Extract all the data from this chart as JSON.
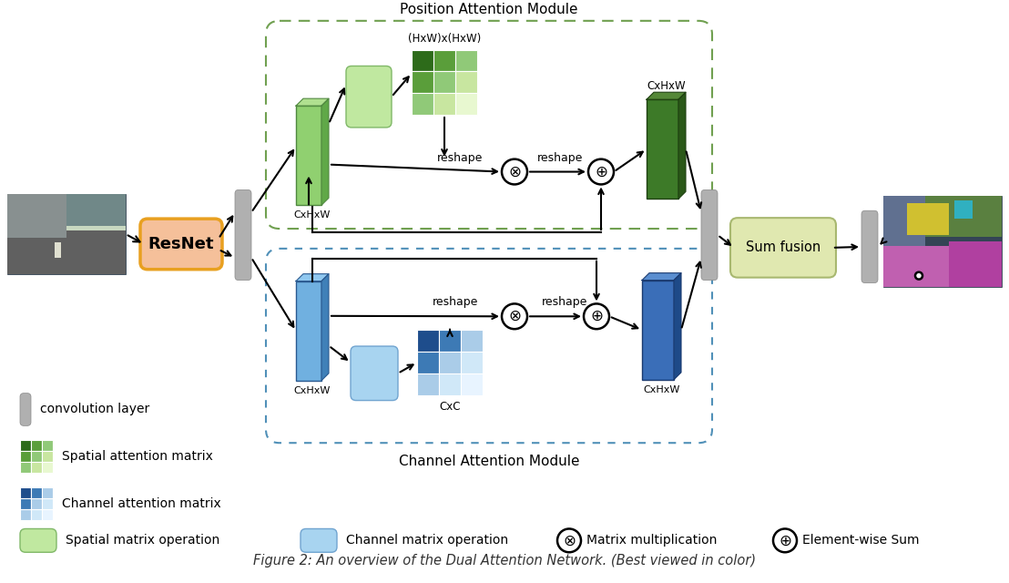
{
  "title": "Position Attention Module",
  "title2": "Channel Attention Module",
  "fig_caption": "Figure 2: An overview of the Dual Attention Network. (Best viewed in color)",
  "colors": {
    "green_light_box": "#a8d890",
    "green_tall": "#88c870",
    "green_tall_edge": "#508840",
    "green_dark": "#3a6e20",
    "green_dark_edge": "#2a5015",
    "green_matrix_colors": [
      "#2d6b1a",
      "#5a9e3a",
      "#90c978",
      "#5a9e3a",
      "#90c978",
      "#c8e6a0",
      "#90c978",
      "#c8e6a0",
      "#e8f8d0"
    ],
    "blue_tall": "#5a9ad0",
    "blue_tall_edge": "#2a5a90",
    "blue_dark": "#3060a0",
    "blue_dark_edge": "#1a3a70",
    "blue_light_box": "#90c0e8",
    "blue_matrix_colors": [
      "#1e4d8c",
      "#3d7ab5",
      "#aacce8",
      "#3d7ab5",
      "#aacce8",
      "#d0e8f8",
      "#aacce8",
      "#d0e8f8",
      "#e8f4ff"
    ],
    "gray_bar": "#b0b0b0",
    "gray_bar_edge": "#888888",
    "resnet_fill": "#f5c09a",
    "resnet_edge": "#e8a020",
    "sum_fusion_fill": "#e0e8b0",
    "sum_fusion_edge": "#a8b870",
    "dashed_green": "#70a050",
    "dashed_blue": "#5090b8",
    "black": "#000000",
    "white": "#ffffff"
  }
}
